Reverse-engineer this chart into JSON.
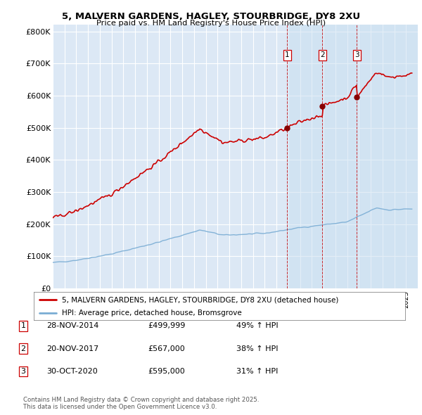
{
  "title1": "5, MALVERN GARDENS, HAGLEY, STOURBRIDGE, DY8 2XU",
  "title2": "Price paid vs. HM Land Registry's House Price Index (HPI)",
  "ylim": [
    0,
    820000
  ],
  "yticks": [
    0,
    100000,
    200000,
    300000,
    400000,
    500000,
    600000,
    700000,
    800000
  ],
  "ytick_labels": [
    "£0",
    "£100K",
    "£200K",
    "£300K",
    "£400K",
    "£500K",
    "£600K",
    "£700K",
    "£800K"
  ],
  "background_color": "#dce8f5",
  "grid_color": "#ffffff",
  "sale1_date": 2014.91,
  "sale1_price": 499999,
  "sale2_date": 2017.9,
  "sale2_price": 567000,
  "sale3_date": 2020.83,
  "sale3_price": 595000,
  "red_color": "#cc0000",
  "blue_color": "#7aadd4",
  "shade_color": "#daeaf7",
  "legend_label1": "5, MALVERN GARDENS, HAGLEY, STOURBRIDGE, DY8 2XU (detached house)",
  "legend_label2": "HPI: Average price, detached house, Bromsgrove",
  "table_rows": [
    {
      "num": "1",
      "date": "28-NOV-2014",
      "price": "£499,999",
      "change": "49% ↑ HPI"
    },
    {
      "num": "2",
      "date": "20-NOV-2017",
      "price": "£567,000",
      "change": "38% ↑ HPI"
    },
    {
      "num": "3",
      "date": "30-OCT-2020",
      "price": "£595,000",
      "change": "31% ↑ HPI"
    }
  ],
  "footer": "Contains HM Land Registry data © Crown copyright and database right 2025.\nThis data is licensed under the Open Government Licence v3.0.",
  "xmin": 1995,
  "xmax": 2026,
  "hpi_base": 80000,
  "red_base": 155000
}
